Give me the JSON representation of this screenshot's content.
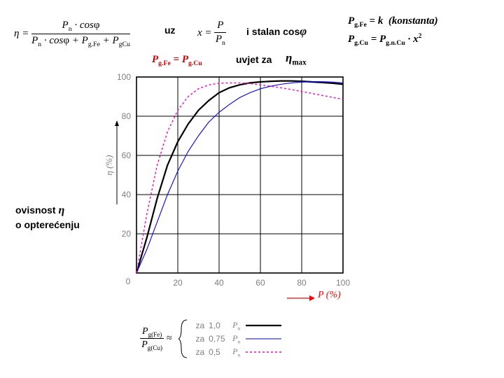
{
  "top_row": {
    "eta_formula_html": "η = <span style=\"display:inline-block;text-align:center;vertical-align:middle;\"><span style=\"display:block;border-bottom:1.2px solid #000;padding:0 4px 1px;\">P<span class=\"sub\">n</span> · cos<span style=\"font-style:normal\">φ</span></span><span style=\"display:block;padding-top:1px;\">P<span class=\"sub\">n</span> · cos<span style=\"font-style:normal\">φ</span> + P<span class=\"sub\">g.Fe</span> + P<span class=\"sub\">gCu</span></span></span>",
    "uz": "uz",
    "x_formula_html": "x = <span style=\"display:inline-block;text-align:center;vertical-align:middle;\"><span style=\"display:block;border-bottom:1.2px solid #000;padding:0 4px 1px;\">P</span><span style=\"display:block;padding-top:1px;\">P<span class=\"sub\">n</span></span></span>",
    "stalan": "i stalan cos",
    "phi": "φ",
    "pgfe_k_html": "P<span class=\"sub\">g.Fe</span> = k&nbsp;&nbsp;(konstanta)",
    "pgcu_x2_html": "P<span class=\"sub\">g.Cu</span> = P<span class=\"sub\">g.n.Cu</span> · x<span class=\"sup\">2</span>"
  },
  "second_row": {
    "condition_label": "uvjet za",
    "pgfe_eq_pgcu_html": "P<span class=\"sub\">g.Fe</span> = P<span class=\"sub\">g.Cu</span>",
    "eta_max_html": "η<span class=\"sub\">max</span>"
  },
  "left_caption": {
    "line1": "ovisnost",
    "line2": "o opterećenju",
    "eta": "η"
  },
  "chart": {
    "x_min": 0,
    "x_max": 100,
    "y_min": 0,
    "y_max": 100,
    "x_ticks": [
      0,
      20,
      40,
      60,
      80,
      100
    ],
    "y_ticks": [
      0,
      20,
      40,
      60,
      80,
      100
    ],
    "y_axis_label": "η (%)",
    "x_axis_label": "P (%)",
    "x_axis_label_color": "#ff0000",
    "grid_color": "#000000",
    "axis_color": "#000000",
    "tick_font_size": 12,
    "tick_color": "#808080",
    "background": "#ffffff",
    "series": [
      {
        "name": "pgfe_over_pgcu_1.0",
        "label": "1,0",
        "color": "#000000",
        "dash": "",
        "width": 2.2,
        "points": [
          [
            0,
            0
          ],
          [
            5,
            18
          ],
          [
            10,
            38
          ],
          [
            15,
            55
          ],
          [
            20,
            67
          ],
          [
            25,
            76
          ],
          [
            30,
            83
          ],
          [
            35,
            88
          ],
          [
            40,
            92
          ],
          [
            45,
            94.5
          ],
          [
            50,
            96
          ],
          [
            55,
            97
          ],
          [
            60,
            97.5
          ],
          [
            65,
            97.8
          ],
          [
            70,
            98
          ],
          [
            75,
            98
          ],
          [
            80,
            97.8
          ],
          [
            85,
            97.5
          ],
          [
            90,
            97.2
          ],
          [
            95,
            96.8
          ],
          [
            100,
            96.3
          ]
        ]
      },
      {
        "name": "pgfe_over_pgcu_0.75",
        "label": "0,75",
        "color": "#0000ff",
        "dash": "",
        "width": 1.1,
        "points": [
          [
            0,
            0
          ],
          [
            5,
            12
          ],
          [
            10,
            26
          ],
          [
            15,
            40
          ],
          [
            20,
            52
          ],
          [
            25,
            62
          ],
          [
            30,
            70
          ],
          [
            35,
            77
          ],
          [
            40,
            82
          ],
          [
            45,
            86
          ],
          [
            50,
            89.5
          ],
          [
            55,
            92
          ],
          [
            60,
            94
          ],
          [
            65,
            95.3
          ],
          [
            70,
            96.3
          ],
          [
            75,
            97
          ],
          [
            80,
            97.4
          ],
          [
            85,
            97.6
          ],
          [
            90,
            97.6
          ],
          [
            95,
            97.4
          ],
          [
            100,
            97
          ]
        ]
      },
      {
        "name": "pgfe_over_pgcu_0.5",
        "label": "0,5",
        "color": "#ff00c0",
        "dash": "3,3",
        "width": 1.4,
        "points": [
          [
            0,
            0
          ],
          [
            5,
            30
          ],
          [
            10,
            55
          ],
          [
            15,
            72
          ],
          [
            20,
            83
          ],
          [
            25,
            90
          ],
          [
            30,
            94
          ],
          [
            35,
            96
          ],
          [
            40,
            96.8
          ],
          [
            45,
            97
          ],
          [
            50,
            97
          ],
          [
            55,
            96.6
          ],
          [
            60,
            96
          ],
          [
            65,
            95.3
          ],
          [
            70,
            94.5
          ],
          [
            75,
            93.6
          ],
          [
            80,
            92.6
          ],
          [
            85,
            91.6
          ],
          [
            90,
            90.6
          ],
          [
            95,
            89.6
          ],
          [
            100,
            88.6
          ]
        ]
      }
    ]
  },
  "legend": {
    "ratio_html": "<span style=\"display:inline-block;text-align:center;vertical-align:middle;\"><span style=\"display:block;border-bottom:1px solid #000;padding:0 3px;\">P<span class=\"sub\">g(Fe)</span></span><span style=\"display:block;padding-top:1px;\">P<span class=\"sub\">g(Cu)</span></span></span> ≈",
    "za": "za",
    "pn_html": "P<span class=\"sub\">n</span>",
    "rows": [
      {
        "val": "1,0",
        "color": "#000000",
        "dash": "",
        "width": 2.2
      },
      {
        "val": "0,75",
        "color": "#0000ff",
        "dash": "",
        "width": 1.1
      },
      {
        "val": "0,5",
        "color": "#ff00c0",
        "dash": "3,3",
        "width": 1.4
      }
    ]
  }
}
